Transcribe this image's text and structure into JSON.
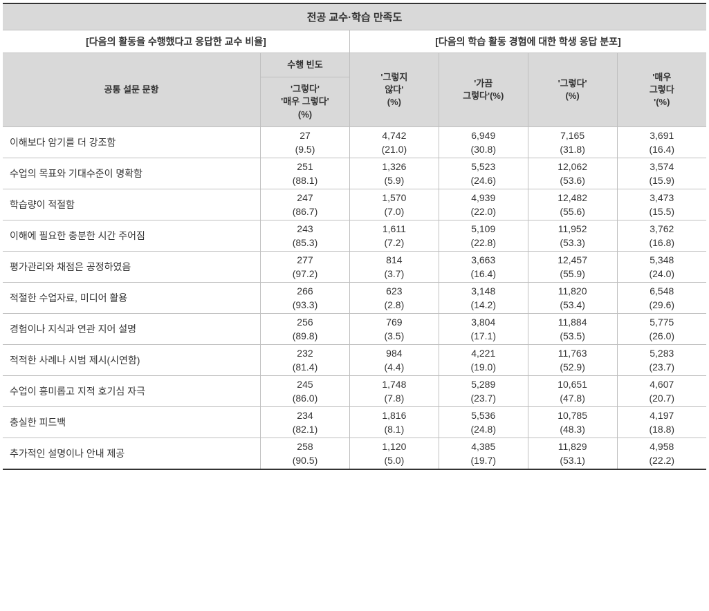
{
  "table": {
    "title": "전공 교수·학습 만족도",
    "subtitle_left": "[다음의 활동을 수행했다고 응답한 교수 비율]",
    "subtitle_right": "[다음의 학습 활동 경험에 대한 학생 응답 분포]",
    "headers": {
      "question": "공통 설문 문항",
      "freq_top": "수행 빈도",
      "freq_sub": "'그렇다'\n'매우 그렇다'\n(%)",
      "resp1": "'그렇지\n않다'\n(%)",
      "resp2": "'가끔\n그렇다'(%)",
      "resp3": "'그렇다'\n(%)",
      "resp4": "'매우\n그렇다\n'(%)"
    },
    "columns": [
      "freq",
      "resp1",
      "resp2",
      "resp3",
      "resp4"
    ],
    "column_widths": {
      "question": 370,
      "data": 128
    },
    "rows": [
      {
        "label": "이해보다 암기를 더 강조함",
        "freq": {
          "n": "27",
          "p": "(9.5)"
        },
        "resp1": {
          "n": "4,742",
          "p": "(21.0)"
        },
        "resp2": {
          "n": "6,949",
          "p": "(30.8)"
        },
        "resp3": {
          "n": "7,165",
          "p": "(31.8)"
        },
        "resp4": {
          "n": "3,691",
          "p": "(16.4)"
        }
      },
      {
        "label": "수업의 목표와 기대수준이 명확함",
        "freq": {
          "n": "251",
          "p": "(88.1)"
        },
        "resp1": {
          "n": "1,326",
          "p": "(5.9)"
        },
        "resp2": {
          "n": "5,523",
          "p": "(24.6)"
        },
        "resp3": {
          "n": "12,062",
          "p": "(53.6)"
        },
        "resp4": {
          "n": "3,574",
          "p": "(15.9)"
        }
      },
      {
        "label": "학습량이 적절함",
        "freq": {
          "n": "247",
          "p": "(86.7)"
        },
        "resp1": {
          "n": "1,570",
          "p": "(7.0)"
        },
        "resp2": {
          "n": "4,939",
          "p": "(22.0)"
        },
        "resp3": {
          "n": "12,482",
          "p": "(55.6)"
        },
        "resp4": {
          "n": "3,473",
          "p": "(15.5)"
        }
      },
      {
        "label": "이해에 필요한 충분한 시간 주어짐",
        "freq": {
          "n": "243",
          "p": "(85.3)"
        },
        "resp1": {
          "n": "1,611",
          "p": "(7.2)"
        },
        "resp2": {
          "n": "5,109",
          "p": "(22.8)"
        },
        "resp3": {
          "n": "11,952",
          "p": "(53.3)"
        },
        "resp4": {
          "n": "3,762",
          "p": "(16.8)"
        }
      },
      {
        "label": "평가관리와 채점은 공정하였음",
        "freq": {
          "n": "277",
          "p": "(97.2)"
        },
        "resp1": {
          "n": "814",
          "p": "(3.7)"
        },
        "resp2": {
          "n": "3,663",
          "p": "(16.4)"
        },
        "resp3": {
          "n": "12,457",
          "p": "(55.9)"
        },
        "resp4": {
          "n": "5,348",
          "p": "(24.0)"
        }
      },
      {
        "label": "적절한 수업자료, 미디어 활용",
        "freq": {
          "n": "266",
          "p": "(93.3)"
        },
        "resp1": {
          "n": "623",
          "p": "(2.8)"
        },
        "resp2": {
          "n": "3,148",
          "p": "(14.2)"
        },
        "resp3": {
          "n": "11,820",
          "p": "(53.4)"
        },
        "resp4": {
          "n": "6,548",
          "p": "(29.6)"
        }
      },
      {
        "label": "경험이나 지식과 연관 지어 설명",
        "freq": {
          "n": "256",
          "p": "(89.8)"
        },
        "resp1": {
          "n": "769",
          "p": "(3.5)"
        },
        "resp2": {
          "n": "3,804",
          "p": "(17.1)"
        },
        "resp3": {
          "n": "11,884",
          "p": "(53.5)"
        },
        "resp4": {
          "n": "5,775",
          "p": "(26.0)"
        }
      },
      {
        "label": "적적한 사례나 시범 제시(시연함)",
        "freq": {
          "n": "232",
          "p": "(81.4)"
        },
        "resp1": {
          "n": "984",
          "p": "(4.4)"
        },
        "resp2": {
          "n": "4,221",
          "p": "(19.0)"
        },
        "resp3": {
          "n": "11,763",
          "p": "(52.9)"
        },
        "resp4": {
          "n": "5,283",
          "p": "(23.7)"
        }
      },
      {
        "label": "수업이 흥미롭고 지적 호기심 자극",
        "freq": {
          "n": "245",
          "p": "(86.0)"
        },
        "resp1": {
          "n": "1,748",
          "p": "(7.8)"
        },
        "resp2": {
          "n": "5,289",
          "p": "(23.7)"
        },
        "resp3": {
          "n": "10,651",
          "p": "(47.8)"
        },
        "resp4": {
          "n": "4,607",
          "p": "(20.7)"
        }
      },
      {
        "label": "충실한 피드백",
        "freq": {
          "n": "234",
          "p": "(82.1)"
        },
        "resp1": {
          "n": "1,816",
          "p": "(8.1)"
        },
        "resp2": {
          "n": "5,536",
          "p": "(24.8)"
        },
        "resp3": {
          "n": "10,785",
          "p": "(48.3)"
        },
        "resp4": {
          "n": "4,197",
          "p": "(18.8)"
        }
      },
      {
        "label": "추가적인 설명이나 안내 제공",
        "freq": {
          "n": "258",
          "p": "(90.5)"
        },
        "resp1": {
          "n": "1,120",
          "p": "(5.0)"
        },
        "resp2": {
          "n": "4,385",
          "p": "(19.7)"
        },
        "resp3": {
          "n": "11,829",
          "p": "(53.1)"
        },
        "resp4": {
          "n": "4,958",
          "p": "(22.2)"
        }
      }
    ],
    "colors": {
      "header_bg": "#d9d9d9",
      "border": "#bfbfbf",
      "outer_border": "#333333",
      "text": "#333333",
      "background": "#ffffff"
    },
    "typography": {
      "base_fontsize": 14,
      "title_fontsize": 15,
      "header_fontsize": 13,
      "font_family": "Malgun Gothic"
    }
  }
}
